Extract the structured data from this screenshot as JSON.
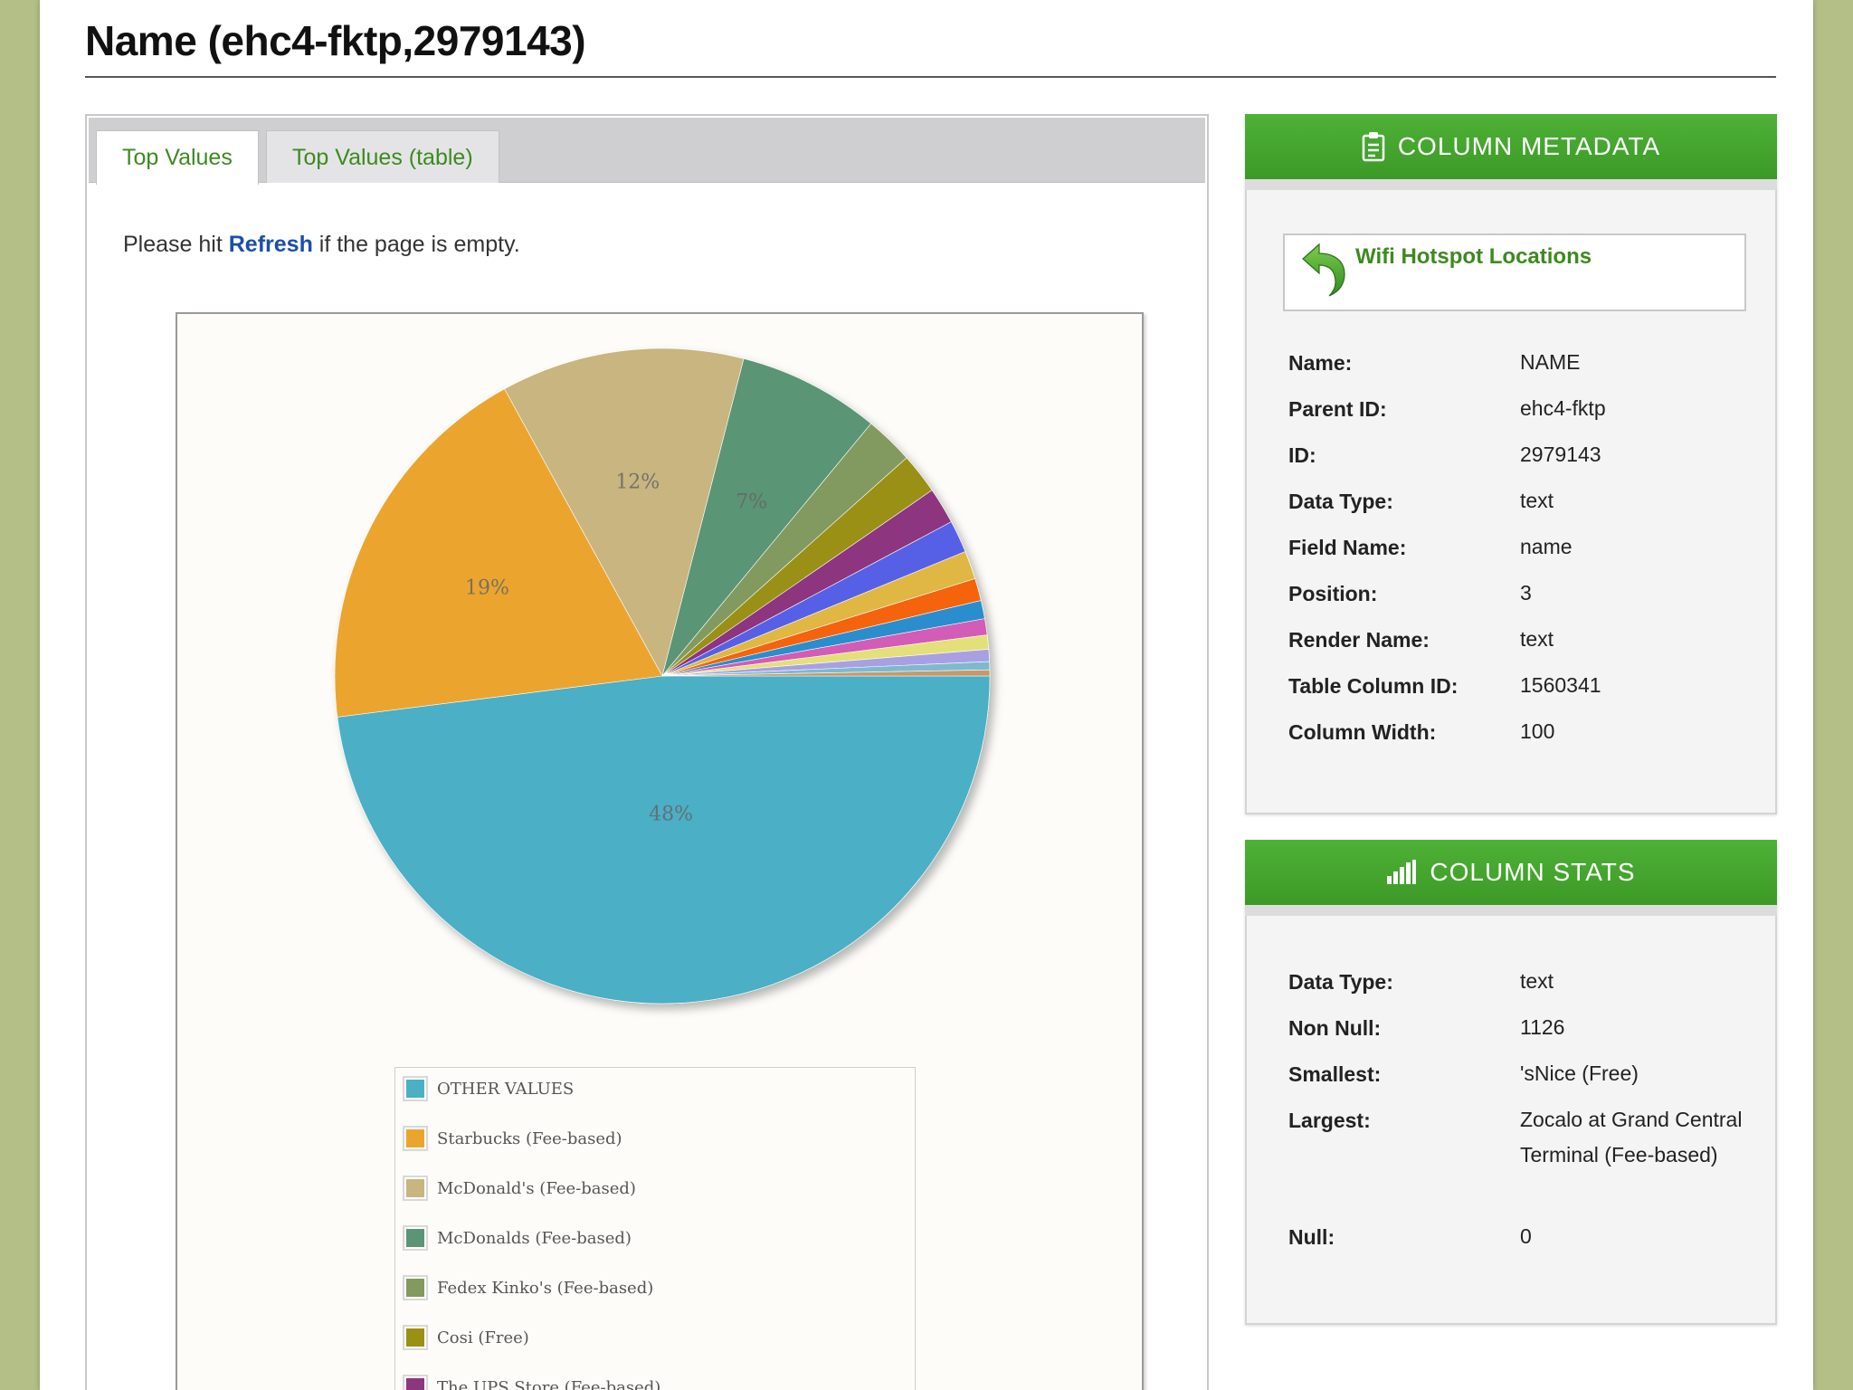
{
  "page": {
    "title": "Name (ehc4-fktp,2979143)"
  },
  "tabs": [
    {
      "label": "Top Values",
      "active": true
    },
    {
      "label": "Top Values (table)",
      "active": false
    }
  ],
  "hint": {
    "prefix": "Please hit ",
    "link": "Refresh",
    "suffix": " if the page is empty."
  },
  "chart_data": {
    "type": "pie",
    "slices": [
      {
        "label": "OTHER VALUES",
        "value": 48,
        "color": "#4bafc6",
        "data_label": "48%"
      },
      {
        "label": "Starbucks (Fee-based)",
        "value": 19,
        "color": "#eba52d",
        "data_label": "19%"
      },
      {
        "label": "McDonald's (Fee-based)",
        "value": 12,
        "color": "#c8b57f",
        "data_label": "12%"
      },
      {
        "label": "McDonalds (Fee-based)",
        "value": 7,
        "color": "#5a9575",
        "data_label": "7%"
      },
      {
        "label": "Fedex Kinko's (Fee-based)",
        "value": 2.4,
        "color": "#829a5e"
      },
      {
        "label": "Cosi (Free)",
        "value": 2.0,
        "color": "#9a9012"
      },
      {
        "label": "The UPS Store (Fee-based)",
        "value": 1.8,
        "color": "#8d357e"
      },
      {
        "label": "",
        "value": 1.6,
        "color": "#5760e6"
      },
      {
        "label": "",
        "value": 1.4,
        "color": "#e0b743"
      },
      {
        "label": "",
        "value": 1.1,
        "color": "#f5640c"
      },
      {
        "label": "",
        "value": 0.9,
        "color": "#2b8dce"
      },
      {
        "label": "",
        "value": 0.8,
        "color": "#d35bb6"
      },
      {
        "label": "",
        "value": 0.7,
        "color": "#e3e07a"
      },
      {
        "label": "",
        "value": 0.6,
        "color": "#a8a0e3"
      },
      {
        "label": "",
        "value": 0.4,
        "color": "#7fb9d0"
      },
      {
        "label": "",
        "value": 0.3,
        "color": "#c49a6c"
      }
    ]
  },
  "metadata": {
    "header": "COLUMN METADATA",
    "parent_link": "Wifi Hotspot Locations",
    "rows": [
      {
        "key": "Name:",
        "value": "NAME"
      },
      {
        "key": "Parent ID:",
        "value": "ehc4-fktp"
      },
      {
        "key": "ID:",
        "value": "2979143"
      },
      {
        "key": "Data Type:",
        "value": "text"
      },
      {
        "key": "Field Name:",
        "value": "name"
      },
      {
        "key": "Position:",
        "value": "3"
      },
      {
        "key": "Render Name:",
        "value": "text"
      },
      {
        "key": "Table Column ID:",
        "value": "1560341"
      },
      {
        "key": "Column Width:",
        "value": "100"
      }
    ]
  },
  "stats": {
    "header": "COLUMN STATS",
    "rows": [
      {
        "key": "Data Type:",
        "value": "text"
      },
      {
        "key": "Non Null:",
        "value": "1126"
      },
      {
        "key": "Smallest:",
        "value": "'sNice (Free)"
      },
      {
        "key": "Largest:",
        "value": "Zocalo at Grand Central Terminal (Fee-based)"
      },
      {
        "key": "Null:",
        "value": "0"
      }
    ]
  },
  "icons": {
    "metadata": "clipboard-icon",
    "stats": "bar-chart-icon",
    "parent": "back-arrow-icon"
  }
}
